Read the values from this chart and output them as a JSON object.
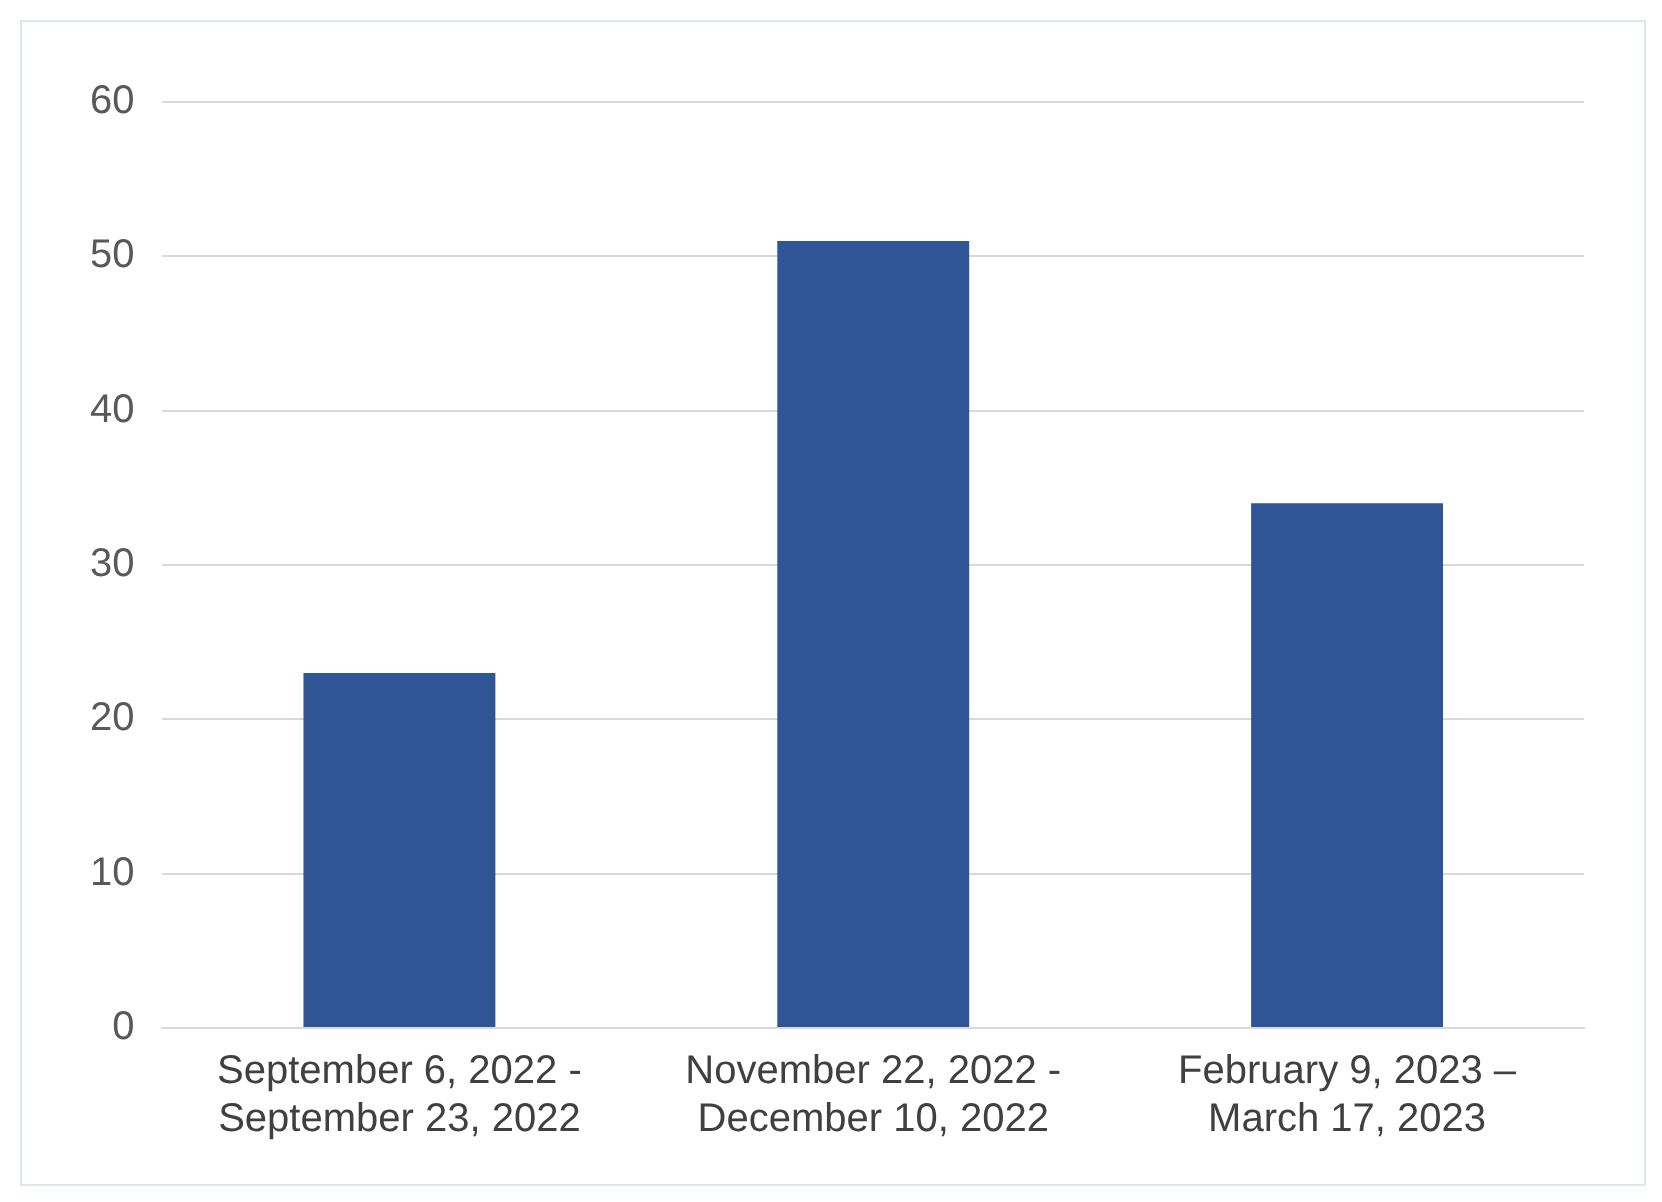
{
  "chart_data": {
    "type": "bar",
    "categories": [
      "September 6, 2022 - September 23, 2022",
      "November 22, 2022 - December 10, 2022",
      "February 9, 2023 – March 17, 2023"
    ],
    "values": [
      23,
      51,
      34
    ],
    "color": "#2f5597",
    "ylim": [
      0,
      60
    ],
    "yticks": [
      0,
      10,
      20,
      30,
      40,
      50,
      60
    ],
    "grid": "y",
    "legend": false
  }
}
